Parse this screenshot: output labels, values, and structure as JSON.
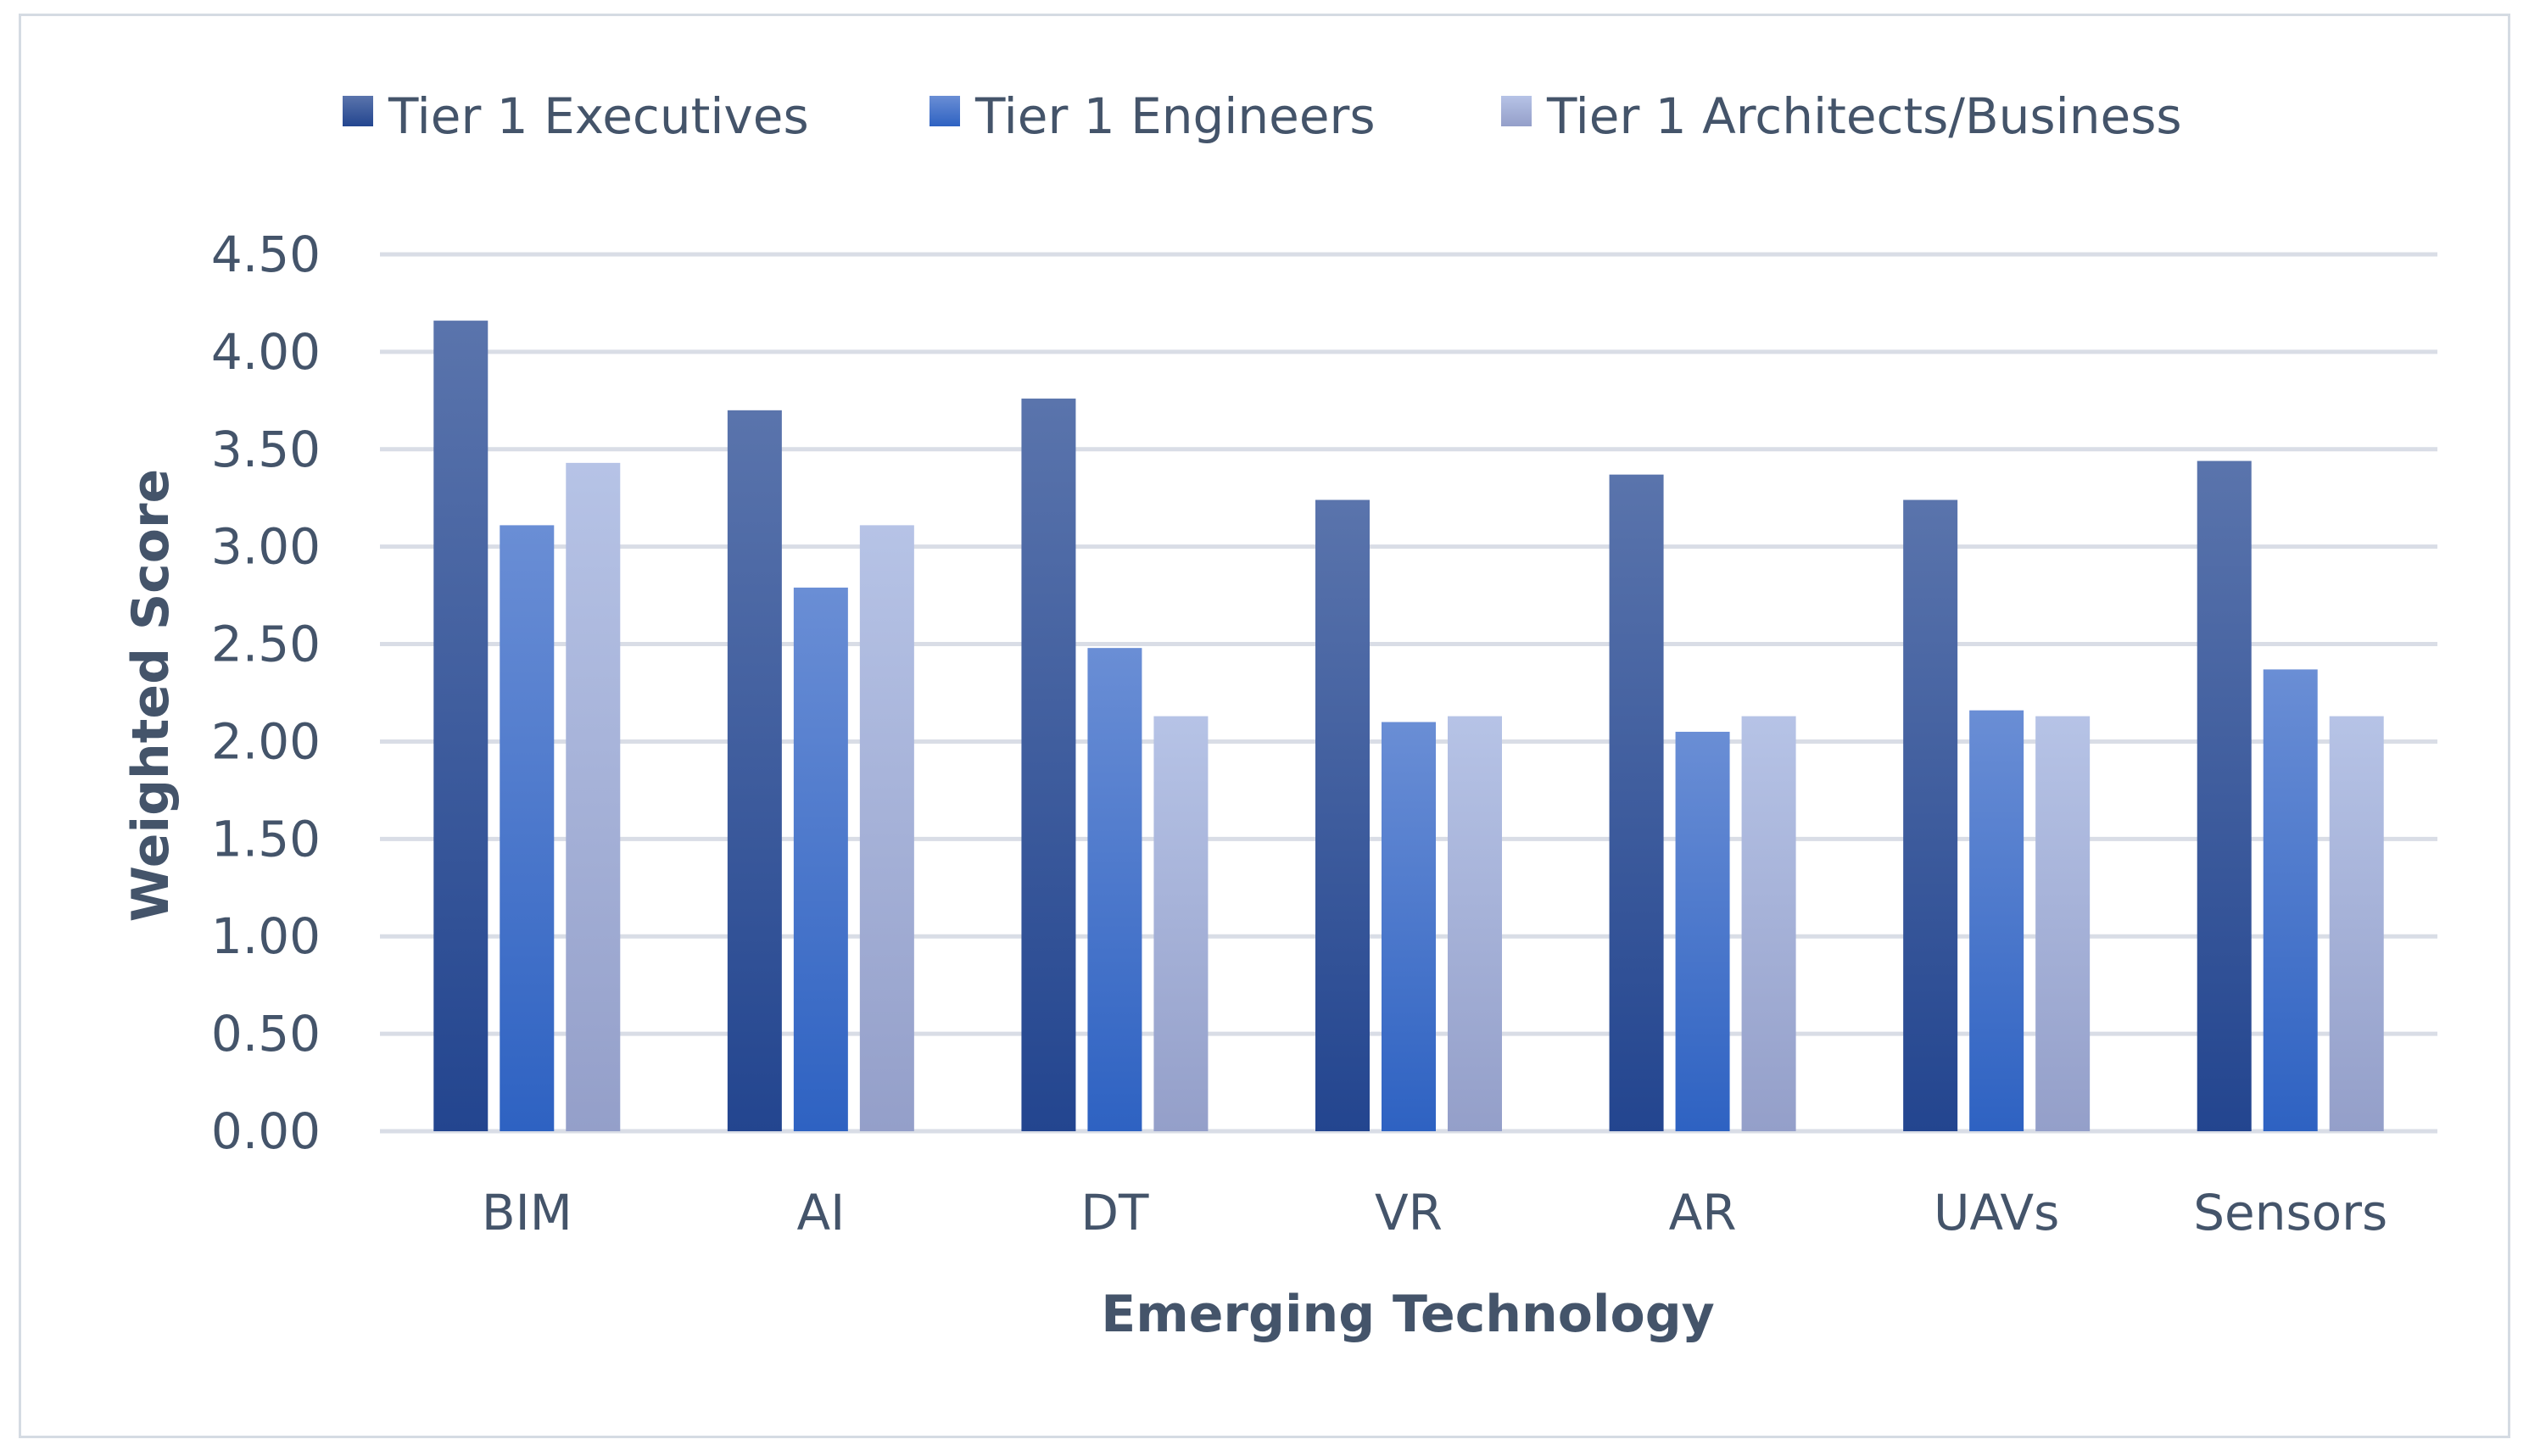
{
  "chart_data": {
    "type": "bar",
    "title": "",
    "xlabel": "Emerging Technology",
    "ylabel": "Weighted Score",
    "ylim": [
      0,
      4.5
    ],
    "yticks": [
      "0.00",
      "0.50",
      "1.00",
      "1.50",
      "2.00",
      "2.50",
      "3.00",
      "3.50",
      "4.00",
      "4.50"
    ],
    "grid": true,
    "legend_position": "top-center",
    "categories": [
      "BIM",
      "AI",
      "DT",
      "VR",
      "AR",
      "UAVs",
      "Sensors"
    ],
    "series": [
      {
        "name": "Tier 1 Executives",
        "values": [
          4.16,
          3.7,
          3.76,
          3.24,
          3.37,
          3.24,
          3.44
        ],
        "color": "#2f4f9a"
      },
      {
        "name": "Tier 1 Engineers",
        "values": [
          3.11,
          2.79,
          2.48,
          2.1,
          2.05,
          2.16,
          2.37
        ],
        "color": "#3a6fcc"
      },
      {
        "name": "Tier 1 Architects/Business",
        "values": [
          3.43,
          3.11,
          2.13,
          2.13,
          2.13,
          2.13,
          2.13
        ],
        "color": "#a7b4dc"
      }
    ]
  }
}
